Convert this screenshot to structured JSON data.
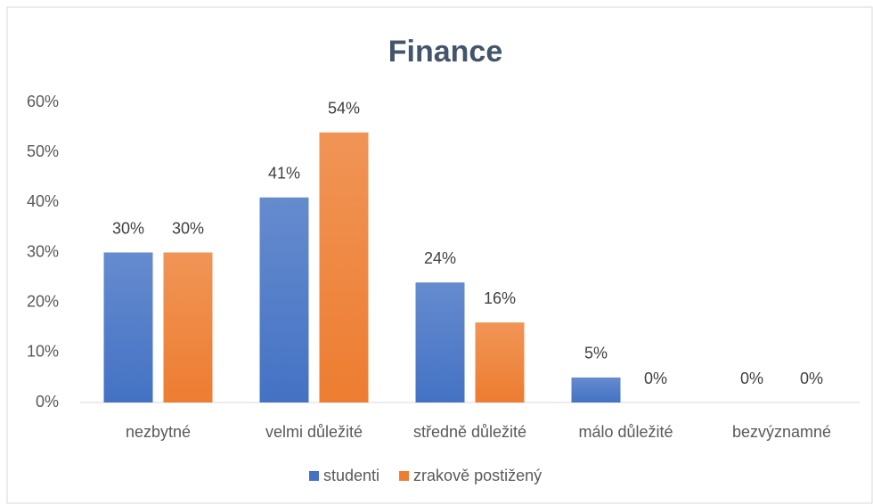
{
  "chart_data": {
    "type": "bar",
    "title": "Finance",
    "categories": [
      "nezbytné",
      "velmi důležité",
      "středně důležité",
      "málo důležité",
      "bezvýznamné"
    ],
    "series": [
      {
        "name": "studenti",
        "color": "#4472c4",
        "values": [
          30,
          41,
          24,
          5,
          0
        ],
        "value_labels": [
          "30%",
          "41%",
          "24%",
          "5%",
          "0%"
        ]
      },
      {
        "name": "zrakově postižený",
        "color": "#ed7d31",
        "values": [
          30,
          54,
          16,
          0,
          0
        ],
        "value_labels": [
          "30%",
          "54%",
          "16%",
          "0%",
          "0%"
        ]
      }
    ],
    "ylim": [
      0,
      60
    ],
    "yticks": [
      {
        "value": 0,
        "label": "0%"
      },
      {
        "value": 10,
        "label": "10%"
      },
      {
        "value": 20,
        "label": "20%"
      },
      {
        "value": 30,
        "label": "30%"
      },
      {
        "value": 40,
        "label": "40%"
      },
      {
        "value": 50,
        "label": "50%"
      },
      {
        "value": 60,
        "label": "60%"
      }
    ],
    "grid": false,
    "legend": "bottom"
  }
}
